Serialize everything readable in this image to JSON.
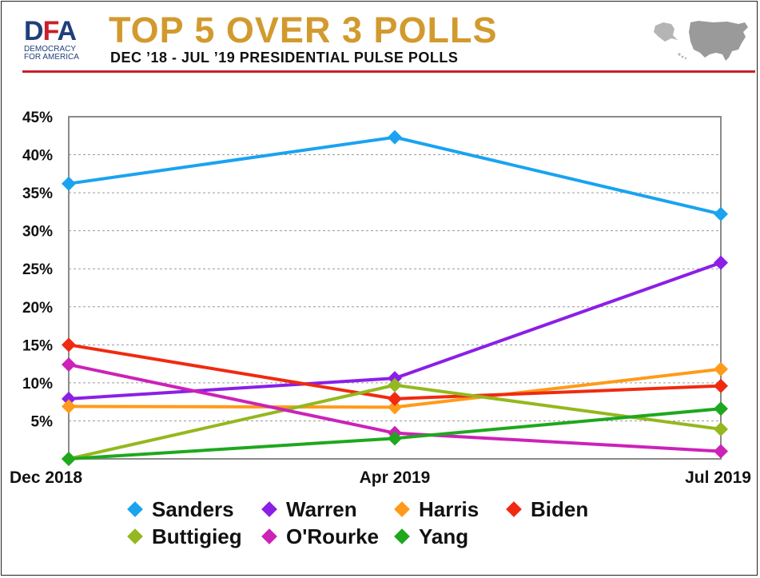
{
  "header": {
    "logo_text_d": "D",
    "logo_text_f": "F",
    "logo_text_a": "A",
    "logo_sub_1": "DEMOCRACY",
    "logo_sub_2": "FOR AMERICA",
    "title": "TOP 5 OVER 3 POLLS",
    "subtitle": "DEC ’18 - JUL ’19 PRESIDENTIAL PULSE POLLS",
    "map_icon": "us-map-icon"
  },
  "colors": {
    "title": "#d29a2e",
    "rule": "#c8202a",
    "brand_blue": "#1f3f7a"
  },
  "chart_data": {
    "type": "line",
    "categories": [
      "Dec 2018",
      "Apr 2019",
      "Jul 2019"
    ],
    "ylim": [
      0,
      45
    ],
    "yticks": [
      5,
      10,
      15,
      20,
      25,
      30,
      35,
      40,
      45
    ],
    "ytick_labels": [
      "5%",
      "10%",
      "15%",
      "20%",
      "25%",
      "30%",
      "35%",
      "40%",
      "45%"
    ],
    "grid": true,
    "legend_position": "bottom",
    "series": [
      {
        "name": "Sanders",
        "color": "#1aa3f0",
        "values": [
          36.2,
          42.3,
          32.2
        ]
      },
      {
        "name": "Warren",
        "color": "#8b1fe6",
        "values": [
          7.9,
          10.6,
          25.8
        ]
      },
      {
        "name": "Harris",
        "color": "#ff9a1a",
        "values": [
          6.9,
          6.8,
          11.8
        ]
      },
      {
        "name": "Biden",
        "color": "#f02a10",
        "values": [
          15.0,
          7.9,
          9.6
        ]
      },
      {
        "name": "Buttigieg",
        "color": "#94b81e",
        "values": [
          0.0,
          9.7,
          3.9
        ]
      },
      {
        "name": "O'Rourke",
        "color": "#cc22b8",
        "values": [
          12.4,
          3.4,
          1.0
        ]
      },
      {
        "name": "Yang",
        "color": "#1ea81e",
        "values": [
          0.0,
          2.7,
          6.6
        ]
      }
    ]
  }
}
